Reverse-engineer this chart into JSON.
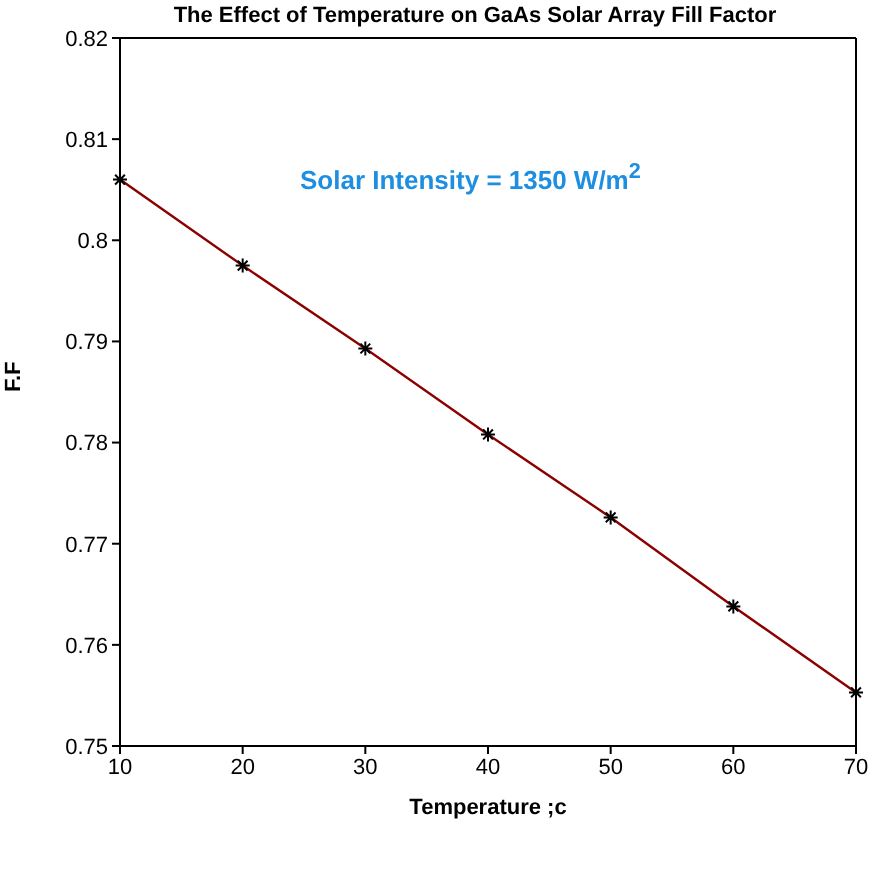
{
  "chart_data": {
    "type": "line",
    "title": "The Effect of Temperature on GaAs Solar Array Fill Factor",
    "xlabel": "Temperature ;c",
    "ylabel": "F.F",
    "annotations": [
      "Solar Intensity = 1350 W/m$^{2}$"
    ],
    "x": [
      10,
      20,
      30,
      40,
      50,
      60,
      70
    ],
    "series": [
      {
        "color": "#8b0000",
        "values": [
          0.806,
          0.7975,
          0.7893,
          0.7808,
          0.7726,
          0.7638,
          0.7553
        ]
      }
    ],
    "marker": "cross",
    "xlim": [
      10,
      70
    ],
    "xticks": [
      10,
      20,
      30,
      40,
      50,
      60,
      70
    ],
    "ylim": [
      0.75,
      0.82
    ],
    "yticks": [
      0.75,
      0.76,
      0.77,
      0.78,
      0.79,
      0.8,
      0.81,
      0.82
    ],
    "grid": false,
    "legend": false
  }
}
